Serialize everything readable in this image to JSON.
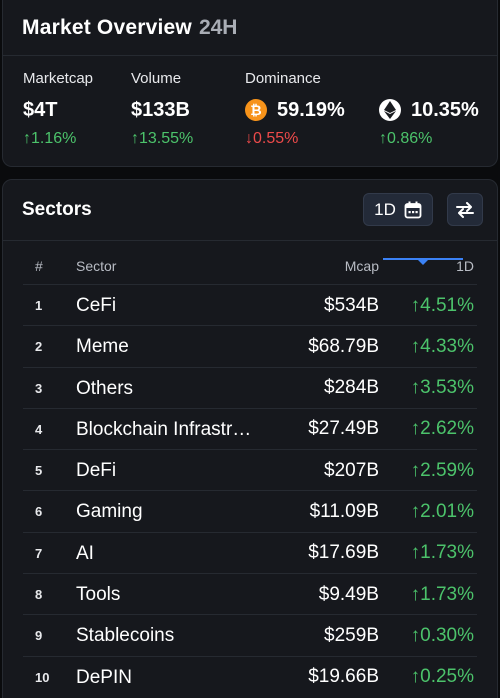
{
  "overview": {
    "title": "Market Overview",
    "period": "24H",
    "marketcap": {
      "label": "Marketcap",
      "value": "$4T",
      "change": "↑1.16%",
      "direction": "up"
    },
    "volume": {
      "label": "Volume",
      "value": "$133B",
      "change": "↑13.55%",
      "direction": "up"
    },
    "dominance": {
      "label": "Dominance",
      "btc": {
        "icon": "bitcoin-icon",
        "symbol": "₿",
        "value": "59.19%",
        "change": "↓0.55%",
        "direction": "down"
      },
      "eth": {
        "icon": "ethereum-icon",
        "value": "10.35%",
        "change": "↑0.86%",
        "direction": "up"
      }
    }
  },
  "sectors": {
    "title": "Sectors",
    "period_label": "1D",
    "columns": {
      "rank": "#",
      "sector": "Sector",
      "mcap": "Mcap",
      "change": "1D"
    },
    "rows": [
      {
        "rank": "1",
        "name": "CeFi",
        "mcap": "$534B",
        "change": "↑4.51%"
      },
      {
        "rank": "2",
        "name": "Meme",
        "mcap": "$68.79B",
        "change": "↑4.33%"
      },
      {
        "rank": "3",
        "name": "Others",
        "mcap": "$284B",
        "change": "↑3.53%"
      },
      {
        "rank": "4",
        "name": "Blockchain Infrastructure",
        "mcap": "$27.49B",
        "change": "↑2.62%"
      },
      {
        "rank": "5",
        "name": "DeFi",
        "mcap": "$207B",
        "change": "↑2.59%"
      },
      {
        "rank": "6",
        "name": "Gaming",
        "mcap": "$11.09B",
        "change": "↑2.01%"
      },
      {
        "rank": "7",
        "name": "AI",
        "mcap": "$17.69B",
        "change": "↑1.73%"
      },
      {
        "rank": "8",
        "name": "Tools",
        "mcap": "$9.49B",
        "change": "↑1.73%"
      },
      {
        "rank": "9",
        "name": "Stablecoins",
        "mcap": "$259B",
        "change": "↑0.30%"
      },
      {
        "rank": "10",
        "name": "DePIN",
        "mcap": "$19.66B",
        "change": "↑0.25%"
      }
    ]
  },
  "colors": {
    "up": "#4cc36b",
    "down": "#ec4a4a",
    "accent": "#3b82f6",
    "btc": "#f7931a"
  }
}
